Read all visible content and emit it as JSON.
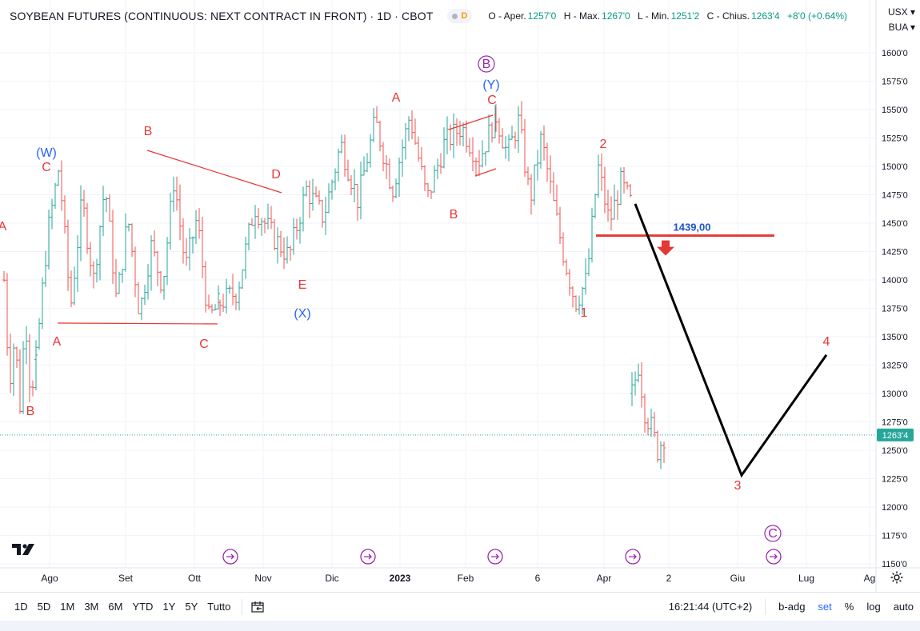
{
  "header": {
    "symbol": "SOYBEAN FUTURES (CONTINUOUS: NEXT CONTRACT IN FRONT) · 1D · CBOT",
    "badge": "D",
    "open_label": "O - Aper.",
    "open": "1257'0",
    "high_label": "H - Max.",
    "high": "1267'0",
    "low_label": "L - Min.",
    "low": "1251'2",
    "close_label": "C - Chius.",
    "close": "1263'4",
    "change": "+8'0 (+0.64%)"
  },
  "currency": "USX",
  "currency_arrow": "▾",
  "unit": "BUA",
  "unit_arrow": "▾",
  "colors": {
    "up": "#26a69a",
    "down": "#ef5350",
    "wave_red": "#e53935",
    "wave_blue": "#2962ff",
    "purple": "#9c27b0",
    "price_tag": "#26a69a",
    "line": "#000000",
    "level": "#e53935",
    "level_label": "#1e53c8"
  },
  "chart_data": {
    "type": "ohlc",
    "y_axis": {
      "ticks": [
        "1600'0",
        "1575'0",
        "1550'0",
        "1525'0",
        "1500'0",
        "1475'0",
        "1450'0",
        "1425'0",
        "1400'0",
        "1375'0",
        "1350'0",
        "1325'0",
        "1300'0",
        "1275'0",
        "1250'0",
        "1225'0",
        "1200'0",
        "1175'0",
        "1150'0"
      ],
      "range": [
        1150,
        1600
      ]
    },
    "x_axis": {
      "ticks": [
        "Ago",
        "Set",
        "Ott",
        "Nov",
        "Dic",
        "2023",
        "Feb",
        "6",
        "Apr",
        "2",
        "Giu",
        "Lug",
        "Ag"
      ]
    },
    "last_price": 1263.5,
    "last_price_label": "1263'4",
    "level": {
      "value": 1439.0,
      "label": "1439,00"
    },
    "price_segments": [
      {
        "x_from": 5,
        "x_to": 45,
        "path": [
          1400,
          1310,
          1350,
          1290,
          1370,
          1300,
          1330
        ]
      },
      {
        "x_from": 45,
        "x_to": 275,
        "path": [
          1330,
          1440,
          1500,
          1375,
          1470,
          1400,
          1485,
          1380,
          1455,
          1370,
          1430,
          1395,
          1490,
          1410,
          1455,
          1365,
          1380
        ]
      },
      {
        "x_from": 275,
        "x_to": 620,
        "path": [
          1380,
          1390,
          1465,
          1440,
          1420,
          1480,
          1455,
          1520,
          1470,
          1540,
          1480,
          1545,
          1470,
          1520,
          1535,
          1505,
          1545
        ]
      },
      {
        "x_from": 620,
        "x_to": 790,
        "path": [
          1545,
          1510,
          1540,
          1470,
          1525,
          1470,
          1420,
          1380,
          1400,
          1500,
          1450,
          1485,
          1465
        ]
      },
      {
        "x_from": 790,
        "x_to": 830,
        "path": [
          1300,
          1325,
          1285,
          1270,
          1250,
          1263
        ]
      }
    ],
    "projection": [
      {
        "date_x": "Apr",
        "price": 1467
      },
      {
        "date_x": "Giu",
        "price": 1228
      },
      {
        "date_x": "Lug",
        "price": 1334
      }
    ],
    "annotations": [
      {
        "text": "A",
        "color": "red"
      },
      {
        "text": "B",
        "color": "red"
      },
      {
        "text": "(W)",
        "color": "blue"
      },
      {
        "text": "C",
        "color": "red"
      },
      {
        "text": "A",
        "color": "red"
      },
      {
        "text": "B",
        "color": "red"
      },
      {
        "text": "C",
        "color": "red"
      },
      {
        "text": "D",
        "color": "red"
      },
      {
        "text": "E",
        "color": "red"
      },
      {
        "text": "(X)",
        "color": "blue"
      },
      {
        "text": "A",
        "color": "red"
      },
      {
        "text": "B",
        "color": "red"
      },
      {
        "text": "C",
        "color": "red"
      },
      {
        "text": "(Y)",
        "color": "blue"
      },
      {
        "text": "B",
        "color": "purple",
        "circled": true
      },
      {
        "text": "2",
        "color": "red"
      },
      {
        "text": "1",
        "color": "red"
      },
      {
        "text": "3",
        "color": "red"
      },
      {
        "text": "4",
        "color": "red"
      },
      {
        "text": "C",
        "color": "purple",
        "circled": true
      }
    ]
  },
  "bottom_bar": {
    "ranges": [
      "1D",
      "5D",
      "1M",
      "3M",
      "6M",
      "YTD",
      "1Y",
      "5Y",
      "Tutto"
    ],
    "time": "16:21:44 (UTC+2)",
    "adj": "b-adg",
    "session": "set",
    "percent": "%",
    "log": "log",
    "auto": "auto"
  }
}
